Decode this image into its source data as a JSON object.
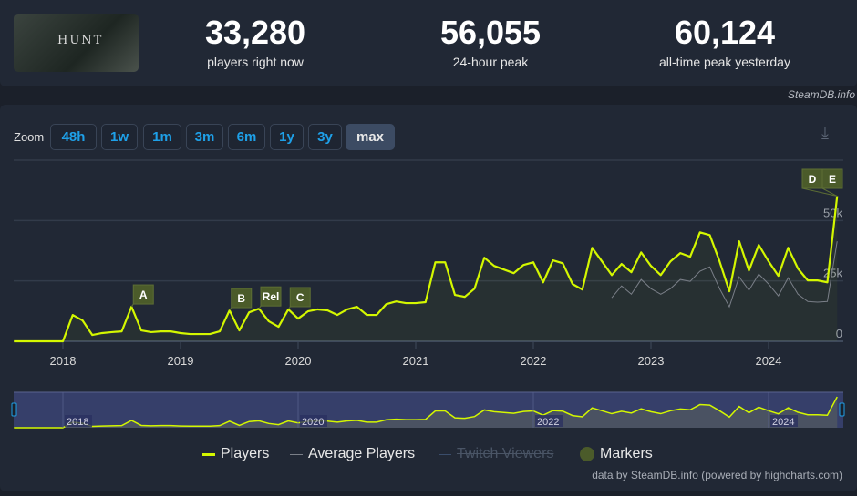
{
  "header": {
    "game_cover": {
      "logo_text": "HUNT"
    },
    "stats": [
      {
        "value": "33,280",
        "label": "players right now"
      },
      {
        "value": "56,055",
        "label": "24-hour peak"
      },
      {
        "value": "60,124",
        "label": "all-time peak yesterday"
      }
    ],
    "credit": "SteamDB.info"
  },
  "zoom": {
    "label": "Zoom",
    "buttons": [
      "48h",
      "1w",
      "1m",
      "3m",
      "6m",
      "1y",
      "3y",
      "max"
    ],
    "active": "max"
  },
  "download_icon": "download-icon",
  "colors": {
    "players": "#d4f700",
    "average": "#7a7f88",
    "twitch": "#3a4d6b",
    "marker": "#4b5b2a"
  },
  "chart_data": {
    "type": "line",
    "x_ticks": [
      "2018",
      "2019",
      "2020",
      "2021",
      "2022",
      "2023",
      "2024"
    ],
    "y_ticks": [
      "0",
      "25k",
      "50k"
    ],
    "ylim": [
      0,
      75000
    ],
    "grid": true,
    "legend_placement": "bottom",
    "series": [
      {
        "name": "Players",
        "start": "2017-08",
        "interval": "month",
        "values": [
          0,
          0,
          0,
          0,
          0,
          0,
          10900,
          8650,
          2600,
          3400,
          3800,
          4100,
          14300,
          4500,
          3800,
          4100,
          4100,
          3400,
          3000,
          3000,
          3000,
          4100,
          12800,
          4500,
          12000,
          13500,
          8300,
          6000,
          13200,
          9400,
          12400,
          13200,
          12800,
          10900,
          13200,
          14300,
          10900,
          10900,
          15400,
          16500,
          15800,
          15800,
          16200,
          32700,
          32700,
          19200,
          18400,
          21800,
          34600,
          31200,
          29700,
          28200,
          31600,
          32700,
          24400,
          33500,
          32300,
          23700,
          21400,
          38700,
          33100,
          27400,
          32000,
          28600,
          36800,
          31200,
          27400,
          33100,
          36500,
          35000,
          45100,
          44000,
          33100,
          20700,
          41400,
          29300,
          39900,
          33100,
          27100,
          38700,
          30100,
          25200,
          25200,
          24400,
          60100
        ]
      },
      {
        "name": "Average Players",
        "start": "2022-09",
        "interval": "month",
        "values": [
          18000,
          22900,
          19500,
          25600,
          21800,
          19500,
          21800,
          25600,
          24800,
          29000,
          30800,
          21800,
          14300,
          26700,
          21100,
          27800,
          23700,
          18800,
          26300,
          19500,
          16500,
          16200,
          16500,
          41400
        ]
      },
      {
        "name": "Twitch Viewers",
        "hidden": true,
        "values": []
      }
    ],
    "markers": [
      {
        "label": "A",
        "date": "2018-08"
      },
      {
        "label": "B",
        "date": "2019-06"
      },
      {
        "label": "Rel",
        "date": "2019-09"
      },
      {
        "label": "C",
        "date": "2019-12"
      },
      {
        "label": "D",
        "date": "2024-08"
      },
      {
        "label": "E",
        "date": "2024-08"
      }
    ],
    "navigator_ticks": [
      "2018",
      "2020",
      "2022",
      "2024"
    ]
  },
  "legend": [
    "Players",
    "Average Players",
    "Twitch Viewers",
    "Markers"
  ],
  "footer": {
    "credit": "data by SteamDB.info (powered by highcharts.com)"
  }
}
